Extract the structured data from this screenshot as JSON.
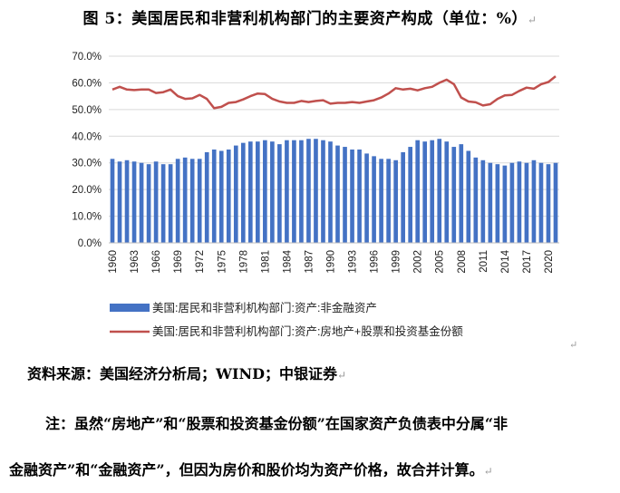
{
  "title": "图 5：美国居民和非营利机构部门的主要资产构成（单位：%）",
  "source": "资料来源：美国经济分析局；WIND；中银证券",
  "note_line1": "注：虽然“房地产”和“股票和投资基金份额”在国家资产负债表中分属“非",
  "note_line2": "金融资产”和“金融资产”，但因为房价和股价均为资产价格，故合并计算。",
  "chart_data": {
    "type": "bar+line",
    "title": "",
    "xlabel": "",
    "ylabel": "",
    "ylim": [
      0,
      70
    ],
    "y_ticks": [
      "0.0%",
      "10.0%",
      "20.0%",
      "30.0%",
      "40.0%",
      "50.0%",
      "60.0%",
      "70.0%"
    ],
    "x_tick_labels": [
      "1960",
      "1963",
      "1966",
      "1969",
      "1972",
      "1975",
      "1978",
      "1981",
      "1984",
      "1987",
      "1990",
      "1993",
      "1996",
      "1999",
      "2002",
      "2005",
      "2008",
      "2011",
      "2014",
      "2017",
      "2020"
    ],
    "x_start": 1960,
    "x_end": 2021,
    "grid": "horizontal",
    "legend_position": "bottom",
    "series": [
      {
        "name": "美国:居民和非营利机构部门:资产:非金融资产",
        "kind": "bar",
        "color": "#4472C4",
        "values": [
          31.5,
          30.5,
          31.0,
          30.5,
          30.0,
          29.5,
          30.5,
          29.5,
          29.5,
          31.5,
          32.0,
          31.5,
          31.5,
          34.0,
          35.0,
          34.5,
          35.0,
          36.5,
          37.5,
          38.0,
          38.0,
          38.5,
          38.0,
          37.0,
          38.5,
          38.5,
          38.5,
          39.0,
          39.0,
          38.5,
          38.0,
          36.5,
          36.0,
          35.0,
          35.0,
          33.5,
          32.5,
          31.5,
          31.5,
          31.0,
          34.0,
          36.0,
          38.5,
          38.0,
          38.5,
          39.0,
          38.0,
          36.0,
          37.0,
          34.5,
          32.0,
          31.0,
          30.0,
          29.5,
          29.0,
          30.0,
          30.5,
          30.0,
          31.0,
          30.0,
          29.5,
          30.0
        ]
      },
      {
        "name": "美国:居民和非营利机构部门:资产:房地产+股票和投资基金份额",
        "kind": "line",
        "color": "#C0504D",
        "values": [
          57.5,
          58.5,
          57.5,
          57.3,
          57.5,
          57.5,
          56.2,
          56.5,
          57.5,
          55.0,
          54.0,
          54.2,
          55.5,
          54.0,
          50.5,
          51.0,
          52.5,
          52.8,
          53.8,
          55.0,
          56.0,
          55.8,
          54.0,
          53.0,
          52.5,
          52.5,
          53.2,
          52.8,
          53.2,
          53.5,
          52.2,
          52.5,
          52.5,
          52.8,
          52.5,
          53.0,
          53.5,
          54.5,
          56.0,
          58.0,
          57.5,
          57.8,
          57.2,
          58.0,
          58.5,
          60.0,
          61.2,
          59.5,
          54.5,
          53.0,
          52.7,
          51.5,
          52.0,
          54.0,
          55.3,
          55.5,
          57.0,
          58.2,
          57.8,
          59.5,
          60.3,
          62.5
        ]
      }
    ]
  }
}
